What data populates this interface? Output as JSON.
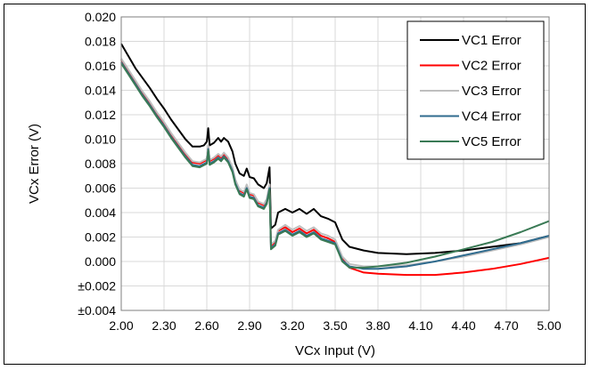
{
  "chart_data": {
    "type": "line",
    "title": "",
    "xlabel": "VCx Input (V)",
    "ylabel": "VCx Error (V)",
    "xlim": [
      2.0,
      5.0
    ],
    "ylim": [
      -0.004,
      0.02
    ],
    "x_ticks": [
      2.0,
      2.3,
      2.6,
      2.9,
      3.2,
      3.5,
      3.8,
      4.1,
      4.4,
      4.7,
      5.0
    ],
    "x_tick_labels": [
      "2.00",
      "2.30",
      "2.60",
      "2.90",
      "3.20",
      "3.50",
      "3.80",
      "4.10",
      "4.40",
      "4.70",
      "5.00"
    ],
    "y_ticks": [
      0.02,
      0.018,
      0.016,
      0.014,
      0.012,
      0.01,
      0.008,
      0.006,
      0.004,
      0.002,
      0.0,
      -0.002,
      -0.004
    ],
    "y_tick_labels": [
      "0.020",
      "0.018",
      "0.016",
      "0.014",
      "0.012",
      "0.010",
      "0.008",
      "0.006",
      "0.004",
      "0.002",
      "0.000",
      "±0.002",
      "±0.004"
    ],
    "grid": true,
    "legend_position": "top-right",
    "series": [
      {
        "name": "VC1 Error",
        "color": "#000000",
        "points": [
          [
            2.0,
            0.0178
          ],
          [
            2.05,
            0.0168
          ],
          [
            2.1,
            0.0158
          ],
          [
            2.15,
            0.015
          ],
          [
            2.2,
            0.0142
          ],
          [
            2.25,
            0.0133
          ],
          [
            2.3,
            0.0125
          ],
          [
            2.35,
            0.0116
          ],
          [
            2.4,
            0.0108
          ],
          [
            2.45,
            0.01
          ],
          [
            2.5,
            0.0094
          ],
          [
            2.55,
            0.0094
          ],
          [
            2.58,
            0.0095
          ],
          [
            2.6,
            0.0098
          ],
          [
            2.61,
            0.0109
          ],
          [
            2.62,
            0.0095
          ],
          [
            2.65,
            0.0097
          ],
          [
            2.68,
            0.0101
          ],
          [
            2.7,
            0.0098
          ],
          [
            2.72,
            0.0101
          ],
          [
            2.75,
            0.0098
          ],
          [
            2.78,
            0.009
          ],
          [
            2.8,
            0.008
          ],
          [
            2.83,
            0.0072
          ],
          [
            2.86,
            0.007
          ],
          [
            2.88,
            0.0076
          ],
          [
            2.9,
            0.0069
          ],
          [
            2.93,
            0.0068
          ],
          [
            2.96,
            0.0063
          ],
          [
            3.0,
            0.006
          ],
          [
            3.02,
            0.0064
          ],
          [
            3.04,
            0.0077
          ],
          [
            3.05,
            0.0027
          ],
          [
            3.08,
            0.003
          ],
          [
            3.1,
            0.004
          ],
          [
            3.15,
            0.0043
          ],
          [
            3.2,
            0.004
          ],
          [
            3.25,
            0.0043
          ],
          [
            3.3,
            0.0039
          ],
          [
            3.35,
            0.0043
          ],
          [
            3.4,
            0.0037
          ],
          [
            3.45,
            0.0035
          ],
          [
            3.5,
            0.0032
          ],
          [
            3.55,
            0.0018
          ],
          [
            3.6,
            0.0012
          ],
          [
            3.7,
            0.0009
          ],
          [
            3.8,
            0.0007
          ],
          [
            4.0,
            0.0006
          ],
          [
            4.2,
            0.0007
          ],
          [
            4.4,
            0.0009
          ],
          [
            4.6,
            0.0012
          ],
          [
            4.8,
            0.0015
          ],
          [
            5.0,
            0.0021
          ]
        ]
      },
      {
        "name": "VC2 Error",
        "color": "#ff0000",
        "points": [
          [
            2.0,
            0.0165
          ],
          [
            2.05,
            0.0156
          ],
          [
            2.1,
            0.0147
          ],
          [
            2.15,
            0.0138
          ],
          [
            2.2,
            0.013
          ],
          [
            2.25,
            0.0121
          ],
          [
            2.3,
            0.0113
          ],
          [
            2.35,
            0.0104
          ],
          [
            2.4,
            0.0096
          ],
          [
            2.45,
            0.0088
          ],
          [
            2.5,
            0.0081
          ],
          [
            2.55,
            0.008
          ],
          [
            2.6,
            0.0083
          ],
          [
            2.61,
            0.0094
          ],
          [
            2.62,
            0.0082
          ],
          [
            2.65,
            0.0084
          ],
          [
            2.68,
            0.0087
          ],
          [
            2.7,
            0.0085
          ],
          [
            2.72,
            0.0088
          ],
          [
            2.75,
            0.0084
          ],
          [
            2.78,
            0.0076
          ],
          [
            2.8,
            0.0066
          ],
          [
            2.83,
            0.0058
          ],
          [
            2.86,
            0.0056
          ],
          [
            2.88,
            0.0062
          ],
          [
            2.9,
            0.0055
          ],
          [
            2.93,
            0.0054
          ],
          [
            2.96,
            0.0048
          ],
          [
            3.0,
            0.0046
          ],
          [
            3.02,
            0.005
          ],
          [
            3.04,
            0.0062
          ],
          [
            3.05,
            0.0013
          ],
          [
            3.08,
            0.0016
          ],
          [
            3.1,
            0.0025
          ],
          [
            3.15,
            0.0028
          ],
          [
            3.2,
            0.0024
          ],
          [
            3.25,
            0.0027
          ],
          [
            3.3,
            0.0023
          ],
          [
            3.35,
            0.0026
          ],
          [
            3.4,
            0.0021
          ],
          [
            3.45,
            0.0019
          ],
          [
            3.5,
            0.0016
          ],
          [
            3.55,
            0.0002
          ],
          [
            3.6,
            -0.0005
          ],
          [
            3.7,
            -0.0009
          ],
          [
            3.8,
            -0.001
          ],
          [
            4.0,
            -0.0011
          ],
          [
            4.2,
            -0.0011
          ],
          [
            4.4,
            -0.0009
          ],
          [
            4.6,
            -0.0006
          ],
          [
            4.8,
            -0.0002
          ],
          [
            5.0,
            0.0003
          ]
        ]
      },
      {
        "name": "VC3 Error",
        "color": "#bfbfbf",
        "points": [
          [
            2.0,
            0.0166
          ],
          [
            2.05,
            0.0157
          ],
          [
            2.1,
            0.0148
          ],
          [
            2.15,
            0.0139
          ],
          [
            2.2,
            0.0131
          ],
          [
            2.25,
            0.0122
          ],
          [
            2.3,
            0.0114
          ],
          [
            2.35,
            0.0105
          ],
          [
            2.4,
            0.0097
          ],
          [
            2.45,
            0.0089
          ],
          [
            2.5,
            0.0082
          ],
          [
            2.55,
            0.0081
          ],
          [
            2.6,
            0.0084
          ],
          [
            2.61,
            0.0095
          ],
          [
            2.62,
            0.0083
          ],
          [
            2.65,
            0.0085
          ],
          [
            2.68,
            0.0088
          ],
          [
            2.7,
            0.0086
          ],
          [
            2.72,
            0.0089
          ],
          [
            2.75,
            0.0085
          ],
          [
            2.78,
            0.0077
          ],
          [
            2.8,
            0.0067
          ],
          [
            2.83,
            0.0059
          ],
          [
            2.86,
            0.0057
          ],
          [
            2.88,
            0.0063
          ],
          [
            2.9,
            0.0056
          ],
          [
            2.93,
            0.0055
          ],
          [
            2.96,
            0.0049
          ],
          [
            3.0,
            0.0047
          ],
          [
            3.02,
            0.0051
          ],
          [
            3.04,
            0.0063
          ],
          [
            3.05,
            0.0014
          ],
          [
            3.08,
            0.0017
          ],
          [
            3.1,
            0.0026
          ],
          [
            3.15,
            0.003
          ],
          [
            3.2,
            0.0026
          ],
          [
            3.25,
            0.0029
          ],
          [
            3.3,
            0.0025
          ],
          [
            3.35,
            0.0028
          ],
          [
            3.4,
            0.0023
          ],
          [
            3.45,
            0.0021
          ],
          [
            3.5,
            0.0018
          ],
          [
            3.55,
            0.0004
          ],
          [
            3.6,
            -0.0002
          ],
          [
            3.7,
            -0.0004
          ],
          [
            3.8,
            -0.0004
          ],
          [
            4.0,
            -0.0003
          ],
          [
            4.2,
            0.0
          ],
          [
            4.4,
            0.0004
          ],
          [
            4.6,
            0.0009
          ],
          [
            4.8,
            0.0014
          ],
          [
            5.0,
            0.002
          ]
        ]
      },
      {
        "name": "VC4 Error",
        "color": "#2f6b8e",
        "points": [
          [
            2.0,
            0.0163
          ],
          [
            2.05,
            0.0154
          ],
          [
            2.1,
            0.0145
          ],
          [
            2.15,
            0.0136
          ],
          [
            2.2,
            0.0128
          ],
          [
            2.25,
            0.0119
          ],
          [
            2.3,
            0.0111
          ],
          [
            2.35,
            0.0102
          ],
          [
            2.4,
            0.0094
          ],
          [
            2.45,
            0.0086
          ],
          [
            2.5,
            0.0079
          ],
          [
            2.55,
            0.0078
          ],
          [
            2.6,
            0.0081
          ],
          [
            2.61,
            0.0092
          ],
          [
            2.62,
            0.008
          ],
          [
            2.65,
            0.0082
          ],
          [
            2.68,
            0.0085
          ],
          [
            2.7,
            0.0083
          ],
          [
            2.72,
            0.0086
          ],
          [
            2.75,
            0.0082
          ],
          [
            2.78,
            0.0074
          ],
          [
            2.8,
            0.0064
          ],
          [
            2.83,
            0.0056
          ],
          [
            2.86,
            0.0054
          ],
          [
            2.88,
            0.006
          ],
          [
            2.9,
            0.0053
          ],
          [
            2.93,
            0.0052
          ],
          [
            2.96,
            0.0046
          ],
          [
            3.0,
            0.0044
          ],
          [
            3.02,
            0.0048
          ],
          [
            3.04,
            0.006
          ],
          [
            3.05,
            0.0011
          ],
          [
            3.08,
            0.0014
          ],
          [
            3.1,
            0.0023
          ],
          [
            3.15,
            0.0026
          ],
          [
            3.2,
            0.0022
          ],
          [
            3.25,
            0.0025
          ],
          [
            3.3,
            0.0021
          ],
          [
            3.35,
            0.0024
          ],
          [
            3.4,
            0.0019
          ],
          [
            3.45,
            0.0017
          ],
          [
            3.5,
            0.0015
          ],
          [
            3.55,
            0.0001
          ],
          [
            3.6,
            -0.0004
          ],
          [
            3.7,
            -0.0006
          ],
          [
            3.8,
            -0.0006
          ],
          [
            4.0,
            -0.0004
          ],
          [
            4.2,
            0.0
          ],
          [
            4.4,
            0.0005
          ],
          [
            4.6,
            0.001
          ],
          [
            4.8,
            0.0015
          ],
          [
            5.0,
            0.0021
          ]
        ]
      },
      {
        "name": "VC5 Error",
        "color": "#3a7a55",
        "points": [
          [
            2.0,
            0.0162
          ],
          [
            2.05,
            0.0153
          ],
          [
            2.1,
            0.0144
          ],
          [
            2.15,
            0.0135
          ],
          [
            2.2,
            0.0127
          ],
          [
            2.25,
            0.0118
          ],
          [
            2.3,
            0.011
          ],
          [
            2.35,
            0.0101
          ],
          [
            2.4,
            0.0093
          ],
          [
            2.45,
            0.0085
          ],
          [
            2.5,
            0.0078
          ],
          [
            2.55,
            0.0077
          ],
          [
            2.6,
            0.008
          ],
          [
            2.61,
            0.0091
          ],
          [
            2.62,
            0.0079
          ],
          [
            2.65,
            0.0081
          ],
          [
            2.68,
            0.0084
          ],
          [
            2.7,
            0.0082
          ],
          [
            2.72,
            0.0085
          ],
          [
            2.75,
            0.0081
          ],
          [
            2.78,
            0.0073
          ],
          [
            2.8,
            0.0063
          ],
          [
            2.83,
            0.0055
          ],
          [
            2.86,
            0.0053
          ],
          [
            2.88,
            0.0059
          ],
          [
            2.9,
            0.0052
          ],
          [
            2.93,
            0.0051
          ],
          [
            2.96,
            0.0045
          ],
          [
            3.0,
            0.0043
          ],
          [
            3.02,
            0.0047
          ],
          [
            3.04,
            0.0059
          ],
          [
            3.05,
            0.001
          ],
          [
            3.08,
            0.0013
          ],
          [
            3.1,
            0.0022
          ],
          [
            3.15,
            0.0025
          ],
          [
            3.2,
            0.0021
          ],
          [
            3.25,
            0.0024
          ],
          [
            3.3,
            0.002
          ],
          [
            3.35,
            0.0023
          ],
          [
            3.4,
            0.0018
          ],
          [
            3.45,
            0.0016
          ],
          [
            3.5,
            0.0014
          ],
          [
            3.55,
            0.0
          ],
          [
            3.6,
            -0.0005
          ],
          [
            3.7,
            -0.0005
          ],
          [
            3.8,
            -0.0004
          ],
          [
            4.0,
            -0.0001
          ],
          [
            4.2,
            0.0004
          ],
          [
            4.4,
            0.001
          ],
          [
            4.6,
            0.0016
          ],
          [
            4.8,
            0.0024
          ],
          [
            5.0,
            0.0033
          ]
        ]
      }
    ]
  }
}
